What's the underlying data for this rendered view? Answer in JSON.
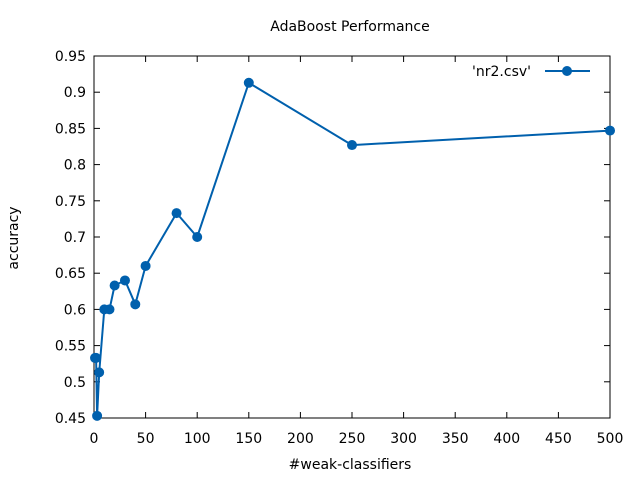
{
  "chart_data": {
    "type": "line",
    "title": "AdaBoost Performance",
    "xlabel": "#weak-classifiers",
    "ylabel": "accuracy",
    "xlim": [
      0,
      500
    ],
    "ylim": [
      0.45,
      0.95
    ],
    "xticks": [
      0,
      50,
      100,
      150,
      200,
      250,
      300,
      350,
      400,
      450,
      500
    ],
    "yticks": [
      0.45,
      0.5,
      0.55,
      0.6,
      0.65,
      0.7,
      0.75,
      0.8,
      0.85,
      0.9,
      0.95
    ],
    "xtick_labels": [
      "0",
      "50",
      "100",
      "150",
      "200",
      "250",
      "300",
      "350",
      "400",
      "450",
      "500"
    ],
    "ytick_labels": [
      "0.45",
      "0.5",
      "0.55",
      "0.6",
      "0.65",
      "0.7",
      "0.75",
      "0.8",
      "0.85",
      "0.9",
      "0.95"
    ],
    "grid": false,
    "legend_position": "top-right",
    "series": [
      {
        "name": "'nr2.csv'",
        "color": "#0060ad",
        "marker": "filled-circle",
        "x": [
          1,
          2,
          3,
          5,
          10,
          15,
          20,
          30,
          40,
          50,
          80,
          100,
          150,
          250,
          500
        ],
        "y": [
          0.533,
          0.533,
          0.453,
          0.513,
          0.6,
          0.6,
          0.633,
          0.64,
          0.607,
          0.66,
          0.733,
          0.7,
          0.913,
          0.827,
          0.847
        ]
      }
    ]
  }
}
